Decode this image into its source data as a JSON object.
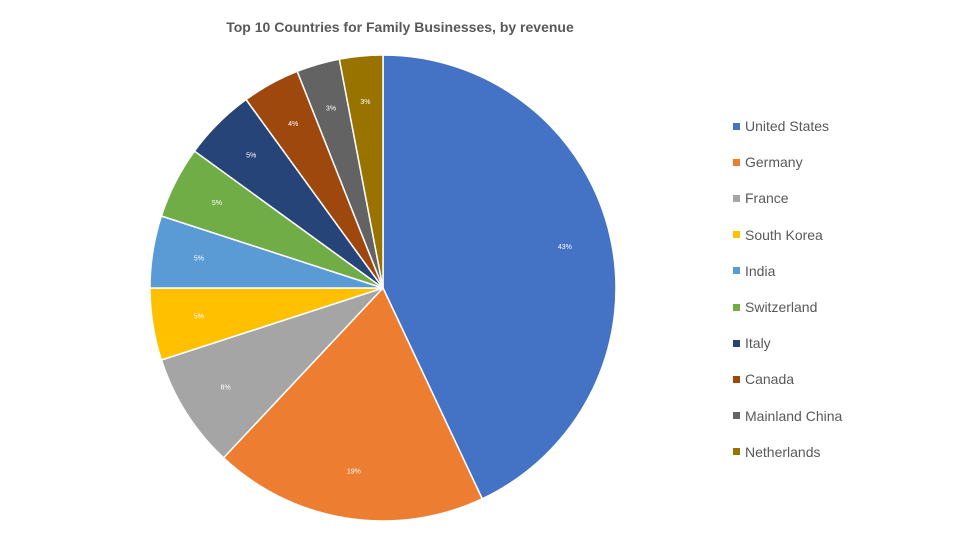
{
  "chart_data": {
    "type": "pie",
    "title": "Top 10 Countries for Family Businesses, by revenue",
    "legend_position": "right",
    "slices": [
      {
        "label": "United States",
        "value": 43,
        "data_label": "43%",
        "color": "#4472C4"
      },
      {
        "label": "Germany",
        "value": 19,
        "data_label": "19%",
        "color": "#ED7D31"
      },
      {
        "label": "France",
        "value": 8,
        "data_label": "8%",
        "color": "#A5A5A5"
      },
      {
        "label": "South Korea",
        "value": 5,
        "data_label": "5%",
        "color": "#FFC000"
      },
      {
        "label": "India",
        "value": 5,
        "data_label": "5%",
        "color": "#5B9BD5"
      },
      {
        "label": "Switzerland",
        "value": 5,
        "data_label": "5%",
        "color": "#70AD47"
      },
      {
        "label": "Italy",
        "value": 5,
        "data_label": "5%",
        "color": "#264478"
      },
      {
        "label": "Canada",
        "value": 4,
        "data_label": "4%",
        "color": "#9E480E"
      },
      {
        "label": "Mainland China",
        "value": 3,
        "data_label": "3%",
        "color": "#636363"
      },
      {
        "label": "Netherlands",
        "value": 3,
        "data_label": "3%",
        "color": "#997300"
      }
    ]
  }
}
